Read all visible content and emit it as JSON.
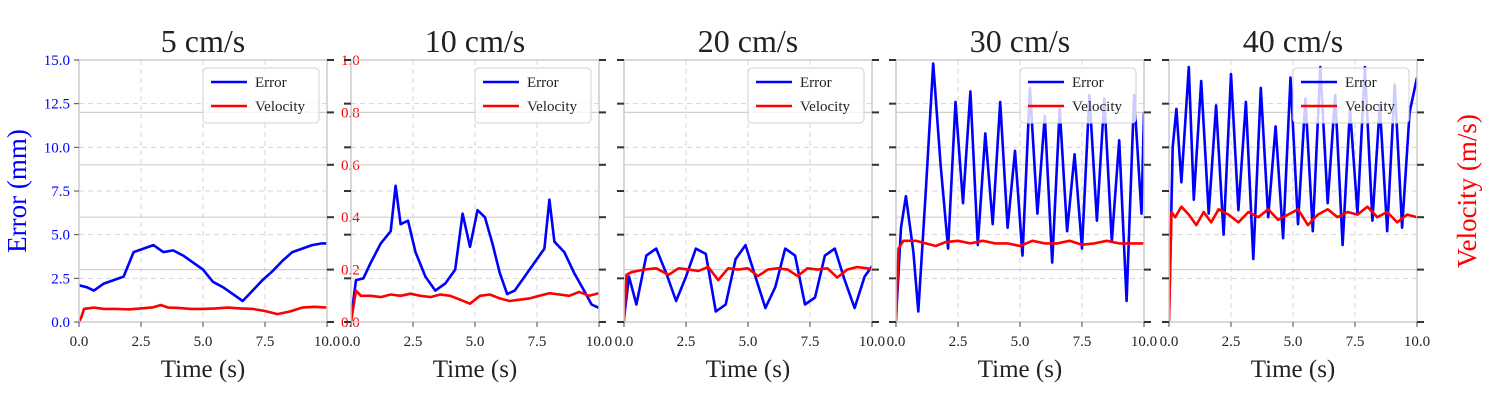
{
  "figure": {
    "left_ylabel": "Error (mm)",
    "right_ylabel": "Velocity (m/s)",
    "left_color": "#0000ff",
    "right_color": "#ff0000"
  },
  "chart_data": [
    {
      "type": "line",
      "title": "5 cm/s",
      "xlabel": "Time (s)",
      "xlim": [
        0,
        10
      ],
      "ylim": [
        0,
        15
      ],
      "y2lim": [
        0,
        1
      ],
      "x_ticks": [
        "0.0",
        "2.5",
        "5.0",
        "7.5",
        "10.0"
      ],
      "y_ticks": [
        "0.0",
        "2.5",
        "5.0",
        "7.5",
        "10.0",
        "12.5",
        "15.0"
      ],
      "y2_ticks": [
        "0.0",
        "0.2",
        "0.4",
        "0.6",
        "0.8",
        "1.0"
      ],
      "legend": [
        "Error",
        "Velocity"
      ],
      "series": [
        {
          "name": "Error",
          "axis": "left",
          "color": "#0000ff",
          "x": [
            0,
            0.3,
            0.6,
            1.0,
            1.4,
            1.8,
            2.2,
            2.6,
            3.0,
            3.4,
            3.8,
            4.2,
            4.6,
            5.0,
            5.4,
            5.8,
            6.2,
            6.6,
            7.0,
            7.4,
            7.8,
            8.2,
            8.6,
            9.0,
            9.4,
            9.8,
            10.0
          ],
          "y": [
            2.1,
            2.0,
            1.8,
            2.2,
            2.4,
            2.6,
            4.0,
            4.2,
            4.4,
            4.0,
            4.1,
            3.8,
            3.4,
            3.0,
            2.3,
            2.0,
            1.6,
            1.2,
            1.8,
            2.4,
            2.9,
            3.5,
            4.0,
            4.2,
            4.4,
            4.5,
            4.5
          ]
        },
        {
          "name": "Velocity",
          "axis": "right",
          "color": "#ff0000",
          "x": [
            0,
            0.1,
            0.2,
            0.6,
            1.0,
            1.5,
            2.0,
            2.5,
            3.0,
            3.3,
            3.6,
            4.0,
            4.5,
            5.0,
            5.5,
            6.0,
            6.5,
            7.0,
            7.5,
            8.0,
            8.5,
            9.0,
            9.5,
            10.0
          ],
          "y": [
            0.0,
            0.02,
            0.05,
            0.055,
            0.05,
            0.05,
            0.048,
            0.052,
            0.056,
            0.065,
            0.055,
            0.054,
            0.05,
            0.05,
            0.052,
            0.055,
            0.052,
            0.05,
            0.042,
            0.03,
            0.04,
            0.055,
            0.058,
            0.055
          ]
        }
      ]
    },
    {
      "type": "line",
      "title": "10 cm/s",
      "xlabel": "Time (s)",
      "xlim": [
        0,
        10
      ],
      "ylim": [
        0,
        15
      ],
      "y2lim": [
        0,
        1
      ],
      "x_ticks": [
        "0.0",
        "2.5",
        "5.0",
        "7.5",
        "10.0"
      ],
      "legend": [
        "Error",
        "Velocity"
      ],
      "series": [
        {
          "name": "Error",
          "axis": "left",
          "color": "#0000ff",
          "x": [
            0,
            0.2,
            0.5,
            0.8,
            1.2,
            1.6,
            1.8,
            2.0,
            2.3,
            2.6,
            3.0,
            3.4,
            3.8,
            4.2,
            4.5,
            4.8,
            5.1,
            5.4,
            5.7,
            6.0,
            6.3,
            6.6,
            7.0,
            7.4,
            7.8,
            8.0,
            8.2,
            8.6,
            9.0,
            9.4,
            9.7,
            10.0
          ],
          "y": [
            0.2,
            2.4,
            2.5,
            3.4,
            4.5,
            5.2,
            7.8,
            5.6,
            5.8,
            4.0,
            2.6,
            1.8,
            2.2,
            3.0,
            6.2,
            4.3,
            6.4,
            6.0,
            4.5,
            2.8,
            1.6,
            1.8,
            2.6,
            3.4,
            4.2,
            7.0,
            4.6,
            4.0,
            2.8,
            1.8,
            1.0,
            0.8
          ]
        },
        {
          "name": "Velocity",
          "axis": "right",
          "color": "#ff0000",
          "x": [
            0,
            0.2,
            0.4,
            0.8,
            1.2,
            1.6,
            2.0,
            2.4,
            2.8,
            3.2,
            3.6,
            4.0,
            4.4,
            4.8,
            5.2,
            5.6,
            6.0,
            6.4,
            6.8,
            7.2,
            7.6,
            8.0,
            8.4,
            8.8,
            9.2,
            9.6,
            10.0
          ],
          "y": [
            0.0,
            0.12,
            0.1,
            0.1,
            0.095,
            0.105,
            0.1,
            0.108,
            0.1,
            0.095,
            0.105,
            0.1,
            0.085,
            0.07,
            0.1,
            0.105,
            0.09,
            0.08,
            0.085,
            0.09,
            0.1,
            0.11,
            0.105,
            0.1,
            0.115,
            0.1,
            0.11
          ]
        }
      ]
    },
    {
      "type": "line",
      "title": "20 cm/s",
      "xlabel": "Time (s)",
      "xlim": [
        0,
        10
      ],
      "ylim": [
        0,
        15
      ],
      "y2lim": [
        0,
        1
      ],
      "x_ticks": [
        "0.0",
        "2.5",
        "5.0",
        "7.5",
        "10.0"
      ],
      "legend": [
        "Error",
        "Velocity"
      ],
      "series": [
        {
          "name": "Error",
          "axis": "left",
          "color": "#0000ff",
          "x": [
            0,
            0.2,
            0.5,
            0.9,
            1.3,
            1.7,
            2.1,
            2.5,
            2.9,
            3.3,
            3.7,
            4.1,
            4.5,
            4.9,
            5.3,
            5.7,
            6.1,
            6.5,
            6.9,
            7.3,
            7.7,
            8.1,
            8.5,
            8.9,
            9.3,
            9.7,
            10.0
          ],
          "y": [
            0.2,
            2.6,
            1.0,
            3.8,
            4.2,
            2.8,
            1.2,
            2.6,
            4.2,
            3.9,
            0.6,
            1.0,
            3.6,
            4.4,
            2.6,
            0.8,
            2.0,
            4.2,
            3.8,
            1.0,
            1.4,
            3.8,
            4.2,
            2.4,
            0.8,
            2.6,
            3.2
          ]
        },
        {
          "name": "Velocity",
          "axis": "right",
          "color": "#ff0000",
          "x": [
            0,
            0.1,
            0.3,
            0.8,
            1.3,
            1.8,
            2.2,
            2.6,
            3.0,
            3.4,
            3.8,
            4.2,
            4.6,
            5.0,
            5.4,
            5.8,
            6.2,
            6.6,
            7.0,
            7.4,
            7.8,
            8.2,
            8.6,
            9.0,
            9.4,
            9.8,
            10.0
          ],
          "y": [
            0.0,
            0.18,
            0.19,
            0.2,
            0.205,
            0.18,
            0.205,
            0.2,
            0.195,
            0.21,
            0.16,
            0.205,
            0.2,
            0.205,
            0.175,
            0.2,
            0.205,
            0.2,
            0.175,
            0.205,
            0.2,
            0.205,
            0.17,
            0.2,
            0.21,
            0.205,
            0.2
          ]
        }
      ]
    },
    {
      "type": "line",
      "title": "30 cm/s",
      "xlabel": "Time (s)",
      "xlim": [
        0,
        10
      ],
      "ylim": [
        0,
        15
      ],
      "y2lim": [
        0,
        1
      ],
      "x_ticks": [
        "0.0",
        "2.5",
        "5.0",
        "7.5",
        "10.0"
      ],
      "legend": [
        "Error",
        "Velocity"
      ],
      "series": [
        {
          "name": "Error",
          "axis": "left",
          "color": "#0000ff",
          "x": [
            0,
            0.2,
            0.4,
            0.7,
            0.9,
            1.2,
            1.5,
            1.8,
            2.1,
            2.4,
            2.7,
            3.0,
            3.3,
            3.6,
            3.9,
            4.2,
            4.5,
            4.8,
            5.1,
            5.4,
            5.7,
            6.0,
            6.3,
            6.6,
            6.9,
            7.2,
            7.5,
            7.8,
            8.1,
            8.4,
            8.7,
            9.0,
            9.3,
            9.6,
            9.9,
            10.0
          ],
          "y": [
            0.2,
            5.4,
            7.2,
            4.0,
            0.6,
            7.5,
            14.8,
            9.0,
            4.2,
            12.6,
            6.8,
            13.2,
            4.4,
            10.8,
            5.6,
            12.6,
            5.4,
            9.8,
            3.8,
            13.4,
            6.2,
            11.8,
            3.4,
            12.2,
            5.2,
            9.6,
            4.2,
            13.0,
            5.8,
            12.8,
            4.6,
            10.4,
            1.2,
            13.0,
            6.2,
            12.0
          ]
        },
        {
          "name": "Velocity",
          "axis": "right",
          "color": "#ff0000",
          "x": [
            0,
            0.1,
            0.3,
            0.8,
            1.2,
            1.6,
            2.0,
            2.5,
            3.0,
            3.5,
            4.0,
            4.5,
            5.0,
            5.5,
            6.0,
            6.5,
            7.0,
            7.5,
            8.0,
            8.5,
            9.0,
            9.5,
            10.0
          ],
          "y": [
            0.0,
            0.28,
            0.31,
            0.31,
            0.3,
            0.29,
            0.305,
            0.31,
            0.3,
            0.31,
            0.3,
            0.3,
            0.29,
            0.31,
            0.3,
            0.3,
            0.31,
            0.295,
            0.3,
            0.31,
            0.3,
            0.3,
            0.3
          ]
        }
      ]
    },
    {
      "type": "line",
      "title": "40 cm/s",
      "xlabel": "Time (s)",
      "xlim": [
        0,
        10
      ],
      "ylim": [
        0,
        15
      ],
      "y2lim": [
        0,
        1
      ],
      "x_ticks": [
        "0.0",
        "2.5",
        "5.0",
        "7.5",
        "10.0"
      ],
      "legend": [
        "Error",
        "Velocity"
      ],
      "series": [
        {
          "name": "Error",
          "axis": "left",
          "color": "#0000ff",
          "x": [
            0,
            0.15,
            0.3,
            0.5,
            0.8,
            1.0,
            1.3,
            1.6,
            1.9,
            2.2,
            2.5,
            2.8,
            3.1,
            3.4,
            3.7,
            4.0,
            4.3,
            4.6,
            4.9,
            5.2,
            5.5,
            5.8,
            6.1,
            6.4,
            6.7,
            7.0,
            7.3,
            7.6,
            7.9,
            8.2,
            8.5,
            8.8,
            9.1,
            9.4,
            9.7,
            10.0
          ],
          "y": [
            0.2,
            10.0,
            12.2,
            8.0,
            14.6,
            7.0,
            13.8,
            6.2,
            12.4,
            5.0,
            14.2,
            6.4,
            12.6,
            3.6,
            13.4,
            6.0,
            11.2,
            4.8,
            14.0,
            5.6,
            12.8,
            5.2,
            14.6,
            6.8,
            13.0,
            4.4,
            12.2,
            6.2,
            14.6,
            5.8,
            12.4,
            5.2,
            13.6,
            5.4,
            12.0,
            14.0
          ]
        },
        {
          "name": "Velocity",
          "axis": "right",
          "color": "#ff0000",
          "x": [
            0,
            0.1,
            0.25,
            0.5,
            0.8,
            1.1,
            1.4,
            1.7,
            2.0,
            2.4,
            2.8,
            3.2,
            3.6,
            4.0,
            4.4,
            4.8,
            5.2,
            5.6,
            6.0,
            6.4,
            6.8,
            7.2,
            7.6,
            8.0,
            8.4,
            8.8,
            9.2,
            9.6,
            10.0
          ],
          "y": [
            0.0,
            0.42,
            0.4,
            0.44,
            0.41,
            0.37,
            0.42,
            0.38,
            0.43,
            0.41,
            0.38,
            0.42,
            0.4,
            0.43,
            0.39,
            0.41,
            0.43,
            0.37,
            0.41,
            0.43,
            0.4,
            0.42,
            0.41,
            0.44,
            0.4,
            0.42,
            0.38,
            0.41,
            0.4
          ]
        }
      ]
    }
  ]
}
